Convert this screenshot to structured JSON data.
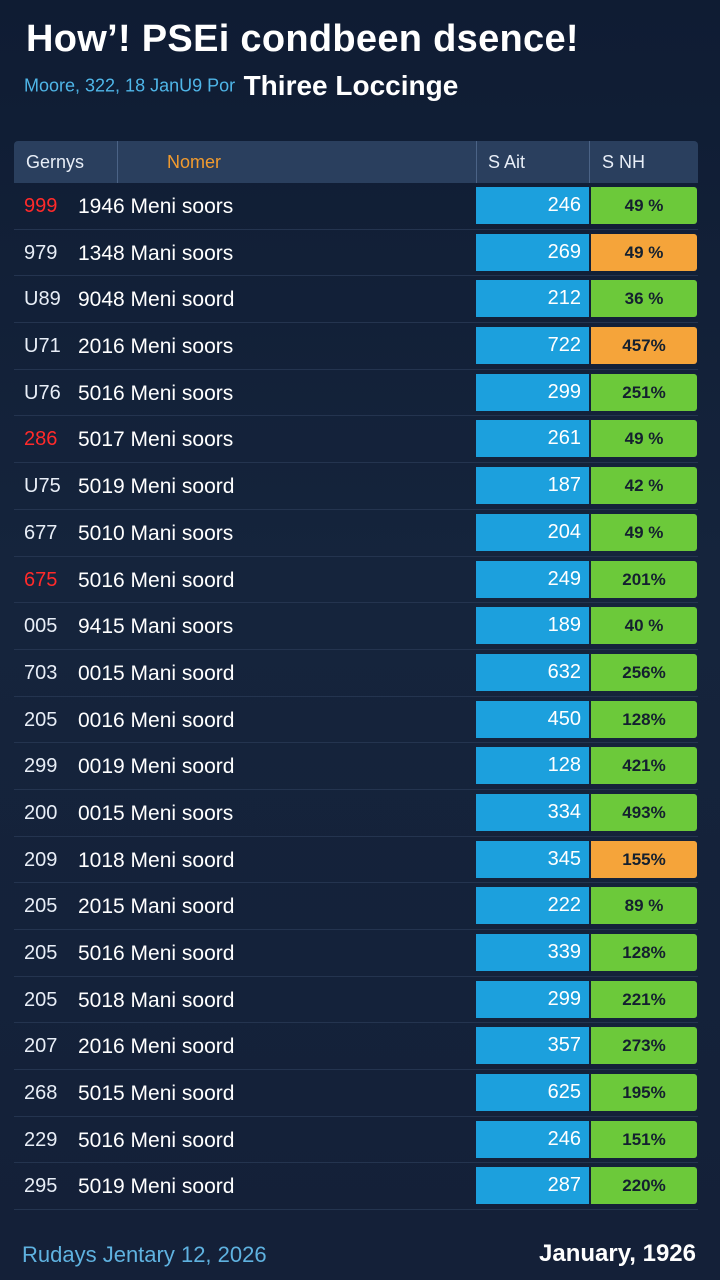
{
  "header": {
    "title": "How’! PSEi condbeen dsence!",
    "subtitle_small": "Moore, 322, 18 JanU9 Por",
    "subtitle_big": "Thiree Loccinge"
  },
  "table": {
    "columns": [
      "Gernys",
      "Nomer",
      "S  Ait",
      "S  NH"
    ],
    "rows": [
      {
        "id": "999",
        "name": "1946 Meni soors",
        "amount": "246",
        "pct": "49 %",
        "id_color": "red",
        "pct_color": "green"
      },
      {
        "id": "979",
        "name": "1348 Mani soors",
        "amount": "269",
        "pct": "49 %",
        "id_color": "white",
        "pct_color": "orange"
      },
      {
        "id": "U89",
        "name": "9048 Meni soord",
        "amount": "212",
        "pct": "36 %",
        "id_color": "white",
        "pct_color": "green"
      },
      {
        "id": "U71",
        "name": "2016 Meni soors",
        "amount": "722",
        "pct": "457%",
        "id_color": "white",
        "pct_color": "orange"
      },
      {
        "id": "U76",
        "name": "5016 Meni soors",
        "amount": "299",
        "pct": "251%",
        "id_color": "white",
        "pct_color": "green"
      },
      {
        "id": "286",
        "name": "5017 Meni soors",
        "amount": "261",
        "pct": "49 %",
        "id_color": "red",
        "pct_color": "green"
      },
      {
        "id": "U75",
        "name": "5019 Meni soord",
        "amount": "187",
        "pct": "42 %",
        "id_color": "white",
        "pct_color": "green"
      },
      {
        "id": "677",
        "name": "5010 Mani soors",
        "amount": "204",
        "pct": "49 %",
        "id_color": "white",
        "pct_color": "green"
      },
      {
        "id": "675",
        "name": "5016 Meni soord",
        "amount": "249",
        "pct": "201%",
        "id_color": "red",
        "pct_color": "green"
      },
      {
        "id": "005",
        "name": "9415 Mani soors",
        "amount": "189",
        "pct": "40 %",
        "id_color": "white",
        "pct_color": "green"
      },
      {
        "id": "703",
        "name": "0015 Mani soord",
        "amount": "632",
        "pct": "256%",
        "id_color": "white",
        "pct_color": "green"
      },
      {
        "id": "205",
        "name": "0016 Meni soord",
        "amount": "450",
        "pct": "128%",
        "id_color": "white",
        "pct_color": "green"
      },
      {
        "id": "299",
        "name": "0019 Meni soord",
        "amount": "128",
        "pct": "421%",
        "id_color": "white",
        "pct_color": "green"
      },
      {
        "id": "200",
        "name": "0015 Meni soors",
        "amount": "334",
        "pct": "493%",
        "id_color": "white",
        "pct_color": "green"
      },
      {
        "id": "209",
        "name": "1018 Meni soord",
        "amount": "345",
        "pct": "155%",
        "id_color": "white",
        "pct_color": "orange"
      },
      {
        "id": "205",
        "name": "2015 Mani soord",
        "amount": "222",
        "pct": "89 %",
        "id_color": "white",
        "pct_color": "green"
      },
      {
        "id": "205",
        "name": "5016 Meni soord",
        "amount": "339",
        "pct": "128%",
        "id_color": "white",
        "pct_color": "green"
      },
      {
        "id": "205",
        "name": "5018 Mani soord",
        "amount": "299",
        "pct": "221%",
        "id_color": "white",
        "pct_color": "green"
      },
      {
        "id": "207",
        "name": "2016 Meni soord",
        "amount": "357",
        "pct": "273%",
        "id_color": "white",
        "pct_color": "green"
      },
      {
        "id": "268",
        "name": "5015 Meni soord",
        "amount": "625",
        "pct": "195%",
        "id_color": "white",
        "pct_color": "green"
      },
      {
        "id": "229",
        "name": "5016 Meni soord",
        "amount": "246",
        "pct": "151%",
        "id_color": "white",
        "pct_color": "green"
      },
      {
        "id": "295",
        "name": "5019 Meni soord",
        "amount": "287",
        "pct": "220%",
        "id_color": "white",
        "pct_color": "green"
      }
    ]
  },
  "footer": {
    "left": "Rudays Jentary 12, 2026",
    "right": "January, 1926"
  },
  "colors": {
    "background": "#15243c",
    "header_bg": "#2a3f5e",
    "amount_bg": "#1ca0dd",
    "pct_green": "#6cc93a",
    "pct_orange": "#f5a43a",
    "id_red": "#ff2a2a",
    "accent_blue": "#4fb6e8",
    "accent_orange": "#f29b2e"
  }
}
